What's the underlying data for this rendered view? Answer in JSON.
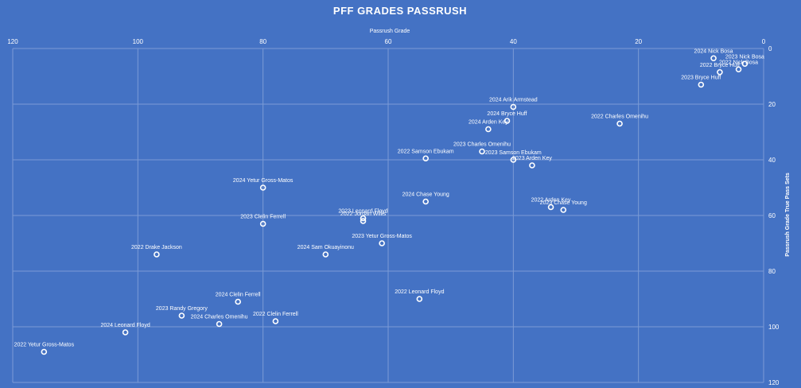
{
  "colors": {
    "background": "#4472c4",
    "grid": "#7b9bd6",
    "text": "#ffffff",
    "marker": "#ffffff"
  },
  "chart_data": {
    "type": "scatter",
    "title": "PFF GRADES PASSRUSH",
    "xlabel": "Passrush Grade",
    "ylabel": "Passrush Grade True Pass Sets",
    "xlim": [
      120,
      0
    ],
    "ylim": [
      0,
      120
    ],
    "x_reversed": true,
    "y_reversed": true,
    "x_axis_position": "top",
    "y_axis_position": "right",
    "grid": true,
    "xticks": [
      "120",
      "100",
      "80",
      "60",
      "40",
      "20",
      "0"
    ],
    "yticks": [
      "0",
      "20",
      "40",
      "60",
      "80",
      "100",
      "120"
    ],
    "points": [
      {
        "label": "2024 Nick Bosa",
        "x": 8,
        "y": 3.5
      },
      {
        "label": "2023 Nick Bosa",
        "x": 3,
        "y": 5.5
      },
      {
        "label": "2022 Nick Bosa",
        "x": 4,
        "y": 7.5
      },
      {
        "label": "2022 Bryce Huff",
        "x": 7,
        "y": 8.5
      },
      {
        "label": "2023 Bryce Huff",
        "x": 10,
        "y": 13
      },
      {
        "label": "2024 Arik Armstead",
        "x": 40,
        "y": 21
      },
      {
        "label": "2024 Bryce Huff",
        "x": 41,
        "y": 26
      },
      {
        "label": "2022 Charles Omenihu",
        "x": 23,
        "y": 27
      },
      {
        "label": "2024 Arden Key",
        "x": 44,
        "y": 29
      },
      {
        "label": "2023 Charles Omenihu",
        "x": 45,
        "y": 37
      },
      {
        "label": "2022 Samson Ebukam",
        "x": 54,
        "y": 39.5
      },
      {
        "label": "2023 Samson Ebukam",
        "x": 40,
        "y": 40
      },
      {
        "label": "2023 Arden Key",
        "x": 37,
        "y": 42
      },
      {
        "label": "2024 Yetur Gross-Matos",
        "x": 80,
        "y": 50
      },
      {
        "label": "2024 Chase Young",
        "x": 54,
        "y": 55
      },
      {
        "label": "2022 Arden Key",
        "x": 34,
        "y": 57
      },
      {
        "label": "2023 Chase Young",
        "x": 32,
        "y": 58
      },
      {
        "label": "2023 Leonard Floyd",
        "x": 64,
        "y": 61
      },
      {
        "label": "2022 Jordan Willis",
        "x": 64,
        "y": 62
      },
      {
        "label": "2023 Clelin Ferrell",
        "x": 80,
        "y": 63
      },
      {
        "label": "2023 Yetur Gross-Matos",
        "x": 61,
        "y": 70
      },
      {
        "label": "2022 Drake Jackson",
        "x": 97,
        "y": 74
      },
      {
        "label": "2024 Sam Okuayinonu",
        "x": 70,
        "y": 74
      },
      {
        "label": "2022 Leonard Floyd",
        "x": 55,
        "y": 90
      },
      {
        "label": "2024 Clelin Ferrell",
        "x": 84,
        "y": 91
      },
      {
        "label": "2023 Randy Gregory",
        "x": 93,
        "y": 96
      },
      {
        "label": "2024 Charles Omenihu",
        "x": 87,
        "y": 99
      },
      {
        "label": "2022 Clelin Ferrell",
        "x": 78,
        "y": 98
      },
      {
        "label": "2024 Leonard Floyd",
        "x": 102,
        "y": 102
      },
      {
        "label": "2022 Yetur Gross-Matos",
        "x": 115,
        "y": 109
      }
    ]
  }
}
